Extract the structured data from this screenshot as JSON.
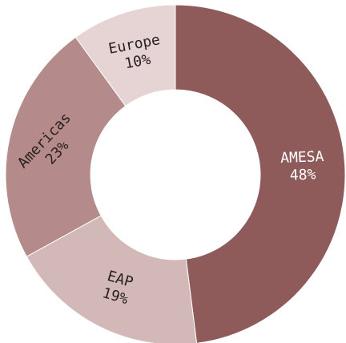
{
  "chart_data": {
    "type": "pie",
    "categories": [
      "AMESA",
      "EAP",
      "Americas",
      "Europe"
    ],
    "values": [
      48,
      19,
      23,
      10
    ],
    "value_labels": [
      "48%",
      "19%",
      "23%",
      "10%"
    ],
    "colors": [
      "#8e5a5a",
      "#d3b8b8",
      "#b48a8a",
      "#e6d3d3"
    ],
    "label_colors": [
      "#ffffff",
      "#2a2020",
      "#2a2020",
      "#2a2020"
    ]
  }
}
